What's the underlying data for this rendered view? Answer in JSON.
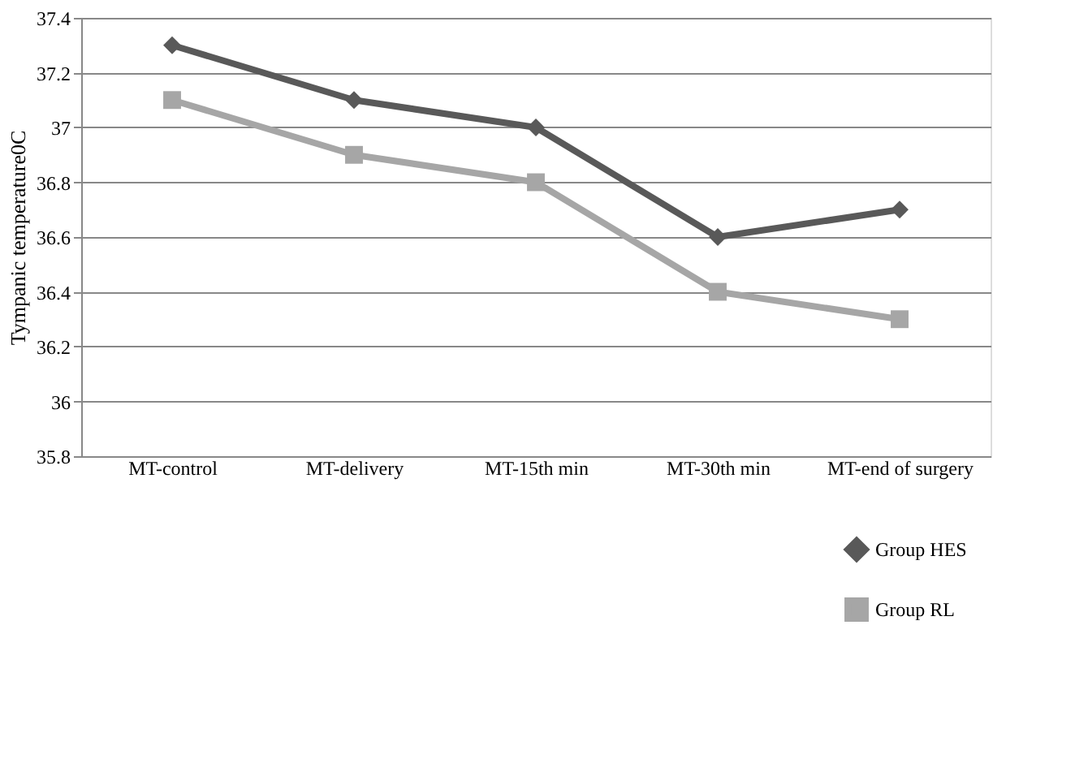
{
  "chart_data": {
    "type": "line",
    "ylabel": "Tympanic temperature0C",
    "categories": [
      "MT-control",
      "MT-delivery",
      "MT-15th min",
      "MT-30th min",
      "MT-end of surgery"
    ],
    "series": [
      {
        "name": "Group HES",
        "color": "#595959",
        "marker": "diamond",
        "values": [
          37.3,
          37.1,
          37.0,
          36.6,
          36.7
        ]
      },
      {
        "name": "Group RL",
        "color": "#a6a6a6",
        "marker": "square",
        "values": [
          37.1,
          36.9,
          36.8,
          36.4,
          36.3
        ]
      }
    ],
    "ylim": [
      35.8,
      37.4
    ],
    "yticks": [
      35.8,
      36,
      36.2,
      36.4,
      36.6,
      36.8,
      37,
      37.2,
      37.4
    ],
    "grid": "y",
    "legend": "bottom right",
    "line_style": "solid"
  }
}
